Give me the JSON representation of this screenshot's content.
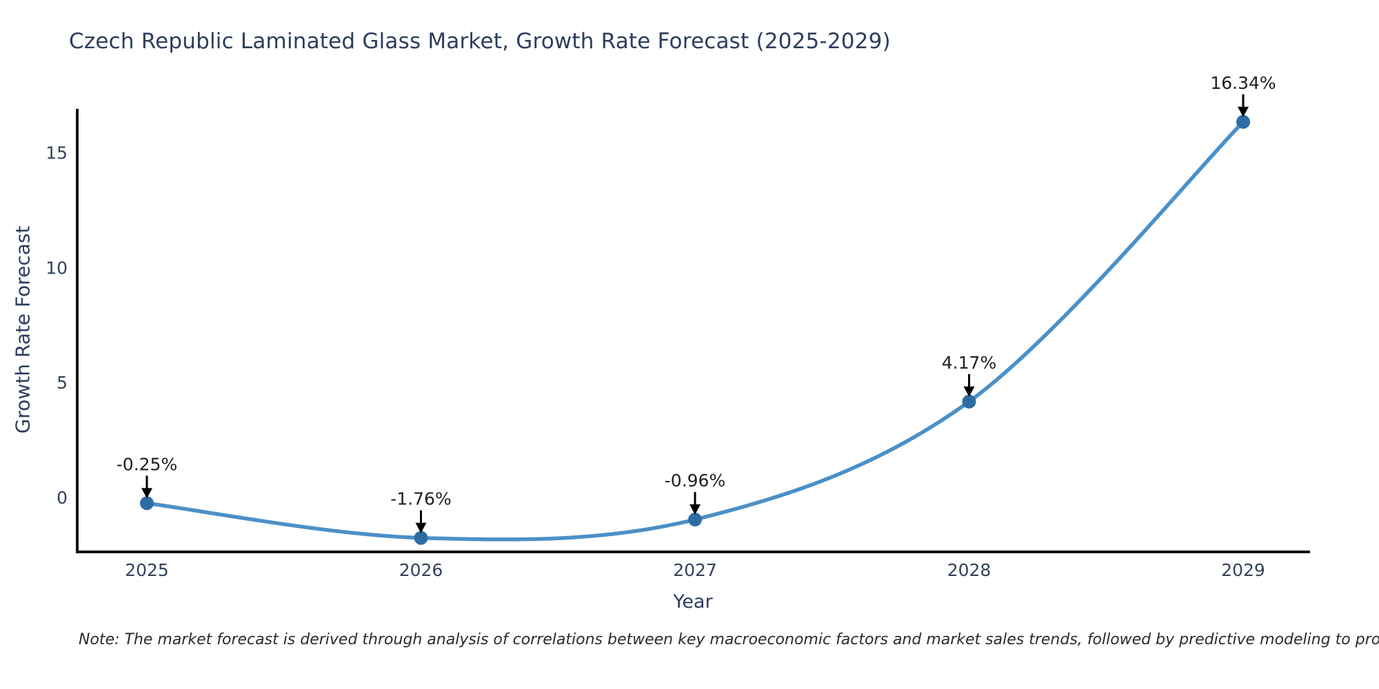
{
  "chart_data": {
    "type": "line",
    "line_shape": "spline",
    "title": "Czech Republic Laminated Glass Market, Growth Rate Forecast (2025-2029)",
    "xlabel": "Year",
    "ylabel": "Growth Rate Forecast",
    "categories": [
      2025,
      2026,
      2027,
      2028,
      2029
    ],
    "values": [
      -0.25,
      -1.76,
      -0.96,
      4.17,
      16.34
    ],
    "point_labels": [
      "-0.25%",
      "-1.76%",
      "-0.96%",
      "4.17%",
      "16.34%"
    ],
    "yticks": [
      0,
      5,
      10,
      15
    ],
    "ylim": [
      -2.4,
      17.1
    ],
    "grid": false,
    "legend": false,
    "colors": {
      "line": "#4a90c8",
      "marker": "#2e6da4",
      "axis": "#111111",
      "title_text": "#2e3d5e",
      "tick_text": "#33415c",
      "annotation_text": "#1f1f1f",
      "arrow": "#000000",
      "note_text": "#2b2b2b",
      "background": "#ffffff"
    },
    "note": "Note: The market forecast is derived through analysis of correlations between key macroeconomic factors and market sales trends, followed by predictive modeling to project future sales."
  }
}
